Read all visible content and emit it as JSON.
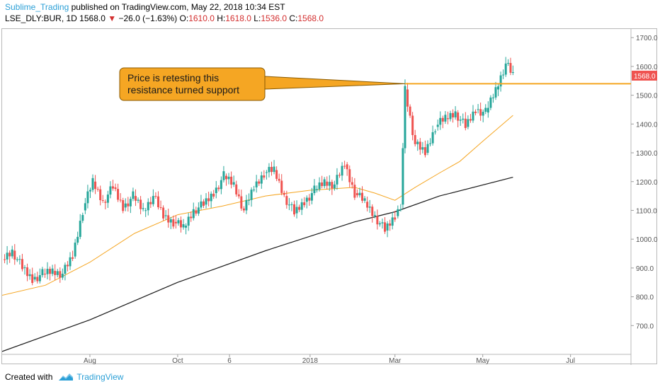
{
  "header": {
    "author": "Sublime_Trading",
    "published_text": "published on TradingView.com, May 22, 2018 10:34 EST",
    "symbol": "LSE_DLY:BUR, 1D",
    "last": "1568.0",
    "change": "−26.0 (−1.63%)",
    "open_label": "O:",
    "open": "1610.0",
    "high_label": "H:",
    "high": "1618.0",
    "low_label": "L:",
    "low": "1536.0",
    "close_label": "C:",
    "close": "1568.0"
  },
  "footer": {
    "created_with": "Created with",
    "brand": "TradingView"
  },
  "colors": {
    "up": "#26a69a",
    "down": "#ef5350",
    "ma50": "#f5a623",
    "ma200": "#1a1a1a",
    "resistance": "#f5a623",
    "callout_fill": "#f5a623",
    "price_tag": "#ef5350"
  },
  "chart_data": {
    "type": "candlestick",
    "ylim": [
      600,
      1730
    ],
    "y_ticks": [
      "700.0",
      "800.0",
      "900.0",
      "1000.0",
      "1100.0",
      "1200.0",
      "1300.0",
      "1400.0",
      "1500.0",
      "1600.0",
      "1700.0"
    ],
    "x_ticks": [
      {
        "label": "Aug",
        "date": "2017-08-01"
      },
      {
        "label": "Oct",
        "date": "2017-10-01"
      },
      {
        "label": "6",
        "date": "2017-11-06"
      },
      {
        "label": "2018",
        "date": "2018-01-01"
      },
      {
        "label": "Mar",
        "date": "2018-03-01"
      },
      {
        "label": "May",
        "date": "2018-05-01"
      },
      {
        "label": "Jul",
        "date": "2018-07-01"
      }
    ],
    "x_range": [
      "2017-06-01",
      "2018-08-12"
    ],
    "price_tag": "1568.0",
    "resistance_level": 1540,
    "resistance_start": "2018-03-08",
    "annotation": {
      "lines": [
        "Price is retesting this",
        "resistance turned support"
      ]
    },
    "series": [
      {
        "name": "",
        "kind": "ohlc",
        "points": [
          {
            "x": "2017-06-01",
            "v": 930
          },
          {
            "x": "2017-06-08",
            "v": 960
          },
          {
            "x": "2017-06-15",
            "v": 900
          },
          {
            "x": "2017-06-22",
            "v": 860
          },
          {
            "x": "2017-06-29",
            "v": 880
          },
          {
            "x": "2017-07-06",
            "v": 890
          },
          {
            "x": "2017-07-13",
            "v": 880
          },
          {
            "x": "2017-07-20",
            "v": 940
          },
          {
            "x": "2017-07-27",
            "v": 1100
          },
          {
            "x": "2017-08-03",
            "v": 1200
          },
          {
            "x": "2017-08-10",
            "v": 1130
          },
          {
            "x": "2017-08-17",
            "v": 1180
          },
          {
            "x": "2017-08-24",
            "v": 1110
          },
          {
            "x": "2017-08-31",
            "v": 1150
          },
          {
            "x": "2017-09-07",
            "v": 1100
          },
          {
            "x": "2017-09-14",
            "v": 1150
          },
          {
            "x": "2017-09-21",
            "v": 1080
          },
          {
            "x": "2017-09-28",
            "v": 1060
          },
          {
            "x": "2017-10-05",
            "v": 1040
          },
          {
            "x": "2017-10-12",
            "v": 1100
          },
          {
            "x": "2017-10-19",
            "v": 1120
          },
          {
            "x": "2017-10-26",
            "v": 1160
          },
          {
            "x": "2017-11-02",
            "v": 1220
          },
          {
            "x": "2017-11-09",
            "v": 1190
          },
          {
            "x": "2017-11-16",
            "v": 1100
          },
          {
            "x": "2017-11-23",
            "v": 1180
          },
          {
            "x": "2017-11-30",
            "v": 1230
          },
          {
            "x": "2017-12-07",
            "v": 1240
          },
          {
            "x": "2017-12-14",
            "v": 1150
          },
          {
            "x": "2017-12-21",
            "v": 1090
          },
          {
            "x": "2017-12-28",
            "v": 1130
          },
          {
            "x": "2018-01-04",
            "v": 1170
          },
          {
            "x": "2018-01-11",
            "v": 1200
          },
          {
            "x": "2018-01-18",
            "v": 1190
          },
          {
            "x": "2018-01-25",
            "v": 1260
          },
          {
            "x": "2018-02-01",
            "v": 1160
          },
          {
            "x": "2018-02-08",
            "v": 1130
          },
          {
            "x": "2018-02-15",
            "v": 1080
          },
          {
            "x": "2018-02-22",
            "v": 1030
          },
          {
            "x": "2018-03-01",
            "v": 1080
          },
          {
            "x": "2018-03-05",
            "v": 1120
          },
          {
            "x": "2018-03-08",
            "v": 1520
          },
          {
            "x": "2018-03-15",
            "v": 1330
          },
          {
            "x": "2018-03-22",
            "v": 1300
          },
          {
            "x": "2018-03-29",
            "v": 1390
          },
          {
            "x": "2018-04-05",
            "v": 1420
          },
          {
            "x": "2018-04-12",
            "v": 1440
          },
          {
            "x": "2018-04-19",
            "v": 1390
          },
          {
            "x": "2018-04-26",
            "v": 1450
          },
          {
            "x": "2018-05-03",
            "v": 1440
          },
          {
            "x": "2018-05-10",
            "v": 1520
          },
          {
            "x": "2018-05-17",
            "v": 1610
          },
          {
            "x": "2018-05-22",
            "v": 1568
          }
        ]
      },
      {
        "name": "",
        "kind": "ma50",
        "points": [
          {
            "x": "2017-06-01",
            "v": 805
          },
          {
            "x": "2017-07-01",
            "v": 840
          },
          {
            "x": "2017-08-01",
            "v": 920
          },
          {
            "x": "2017-09-01",
            "v": 1020
          },
          {
            "x": "2017-10-01",
            "v": 1085
          },
          {
            "x": "2017-11-01",
            "v": 1115
          },
          {
            "x": "2017-12-01",
            "v": 1150
          },
          {
            "x": "2018-01-01",
            "v": 1170
          },
          {
            "x": "2018-02-01",
            "v": 1180
          },
          {
            "x": "2018-02-15",
            "v": 1160
          },
          {
            "x": "2018-03-01",
            "v": 1135
          },
          {
            "x": "2018-03-15",
            "v": 1180
          },
          {
            "x": "2018-04-01",
            "v": 1230
          },
          {
            "x": "2018-04-15",
            "v": 1270
          },
          {
            "x": "2018-05-01",
            "v": 1340
          },
          {
            "x": "2018-05-22",
            "v": 1430
          }
        ]
      },
      {
        "name": "",
        "kind": "ma200",
        "points": [
          {
            "x": "2017-06-01",
            "v": 610
          },
          {
            "x": "2017-08-01",
            "v": 720
          },
          {
            "x": "2017-10-01",
            "v": 850
          },
          {
            "x": "2017-12-01",
            "v": 960
          },
          {
            "x": "2018-02-01",
            "v": 1060
          },
          {
            "x": "2018-03-01",
            "v": 1095
          },
          {
            "x": "2018-04-01",
            "v": 1150
          },
          {
            "x": "2018-05-22",
            "v": 1215
          }
        ]
      }
    ]
  }
}
